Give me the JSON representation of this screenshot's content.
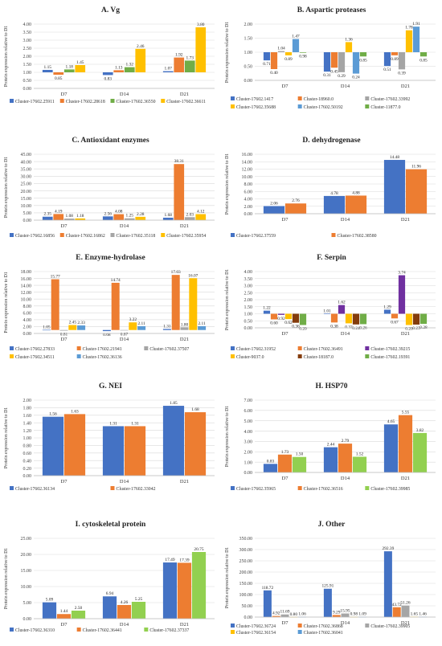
{
  "chart_data": [
    {
      "id": "A",
      "type": "bar",
      "title": "A.   Vg",
      "ylabel": "Protein expression relative to D1",
      "categories": [
        "D7",
        "D14",
        "D21"
      ],
      "ylim": [
        0,
        4
      ],
      "yticks": [
        0,
        0.5,
        1,
        1.5,
        2,
        2.5,
        3,
        3.5,
        4
      ],
      "baseline": 1,
      "decimals": 2,
      "series": [
        {
          "name": "Cluster-17602.25911",
          "color": "#4472C4",
          "values": [
            1.15,
            0.83,
            1.07
          ]
        },
        {
          "name": "Cluster-17602.28618",
          "color": "#ED7D31",
          "values": [
            0.85,
            1.13,
            1.92
          ]
        },
        {
          "name": "Cluster-17602.36550",
          "color": "#70AD47",
          "values": [
            1.18,
            1.32,
            1.73
          ]
        },
        {
          "name": "Cluster-17602.36611",
          "color": "#FFC000",
          "values": [
            1.45,
            2.46,
            3.8
          ]
        }
      ]
    },
    {
      "id": "B",
      "type": "bar",
      "title": "B.   Aspartic proteases",
      "ylabel": "Protein expression relative to D1",
      "categories": [
        "D7",
        "D14",
        "D21"
      ],
      "ylim": [
        0,
        2
      ],
      "yticks": [
        0,
        0.5,
        1,
        1.5,
        2
      ],
      "baseline": 1,
      "decimals": 2,
      "series": [
        {
          "name": "Cluster-17602.1417",
          "color": "#4472C4",
          "values": [
            0.71,
            0.31,
            0.51
          ]
        },
        {
          "name": "Cluster-18960.0",
          "color": "#ED7D31",
          "values": [
            0.4,
            0.45,
            0.89
          ]
        },
        {
          "name": "Cluster-17602.33992",
          "color": "#A5A5A5",
          "values": [
            1.04,
            0.29,
            0.39
          ]
        },
        {
          "name": "Cluster-17602.35688",
          "color": "#FFC000",
          "values": [
            0.89,
            1.36,
            1.78
          ]
        },
        {
          "name": "Cluster-17602.50192",
          "color": "#5B9BD5",
          "values": [
            1.47,
            0.24,
            1.91
          ]
        },
        {
          "name": "Cluster-11877.0",
          "color": "#70AD47",
          "values": [
            0.98,
            0.85,
            0.85
          ]
        }
      ]
    },
    {
      "id": "C",
      "type": "bar",
      "title": "C.   Antioxidant enzymes",
      "ylabel": "Protein expression relative to D1",
      "categories": [
        "D7",
        "D14",
        "D21"
      ],
      "ylim": [
        0,
        45
      ],
      "yticks": [
        0,
        5,
        10,
        15,
        20,
        25,
        30,
        35,
        40,
        45
      ],
      "baseline": 0,
      "decimals": 2,
      "series": [
        {
          "name": "Cluster-17602.16856",
          "color": "#4472C4",
          "values": [
            2.35,
            2.56,
            1.68
          ]
        },
        {
          "name": "Cluster-17602.16862",
          "color": "#ED7D31",
          "values": [
            4.19,
            4.08,
            38.31
          ]
        },
        {
          "name": "Cluster-17602.35118",
          "color": "#A5A5A5",
          "values": [
            1.08,
            1.25,
            2.03
          ]
        },
        {
          "name": "Cluster-17602.35954",
          "color": "#FFC000",
          "values": [
            1.18,
            2.28,
            4.12
          ]
        }
      ]
    },
    {
      "id": "D",
      "type": "bar",
      "title": "D.   dehydrogenase",
      "ylabel": "Protein expression relative to D1",
      "categories": [
        "D7",
        "D14",
        "D21"
      ],
      "ylim": [
        0,
        16
      ],
      "yticks": [
        0,
        2,
        4,
        6,
        8,
        10,
        12,
        14,
        16
      ],
      "baseline": 0,
      "decimals": 2,
      "series": [
        {
          "name": "Cluster-17602.37559",
          "color": "#4472C4",
          "values": [
            2.06,
            4.78,
            14.48
          ]
        },
        {
          "name": "Cluster-17602.38580",
          "color": "#ED7D31",
          "values": [
            2.76,
            4.88,
            11.96
          ]
        }
      ]
    },
    {
      "id": "E",
      "type": "bar",
      "title": "E.   Enzyme-hydrolase",
      "ylabel": "Protein expression relative to D1",
      "categories": [
        "D7",
        "D14",
        "D21"
      ],
      "ylim": [
        0,
        18
      ],
      "yticks": [
        0,
        2,
        4,
        6,
        8,
        10,
        12,
        14,
        16,
        18
      ],
      "baseline": 1,
      "decimals": 2,
      "series": [
        {
          "name": "Cluster-17602.27833",
          "color": "#4472C4",
          "values": [
            1.05,
            0.68,
            1.31
          ]
        },
        {
          "name": "Cluster-17602.21941",
          "color": "#ED7D31",
          "values": [
            15.77,
            14.74,
            17.03
          ]
        },
        {
          "name": "Cluster-17602.37507",
          "color": "#A5A5A5",
          "values": [
            0.81,
            0.87,
            1.8
          ]
        },
        {
          "name": "Cluster-17602.34511",
          "color": "#FFC000",
          "values": [
            2.45,
            3.22,
            16.07
          ]
        },
        {
          "name": "Cluster-17602.36136",
          "color": "#5B9BD5",
          "values": [
            2.33,
            2.11,
            2.11
          ]
        }
      ]
    },
    {
      "id": "F",
      "type": "bar",
      "title": "F.   Serpin",
      "ylabel": "Protein expression relative to D1",
      "categories": [
        "D7",
        "D14",
        "D21"
      ],
      "ylim": [
        0,
        4
      ],
      "yticks": [
        0,
        0.5,
        1,
        1.5,
        2,
        2.5,
        3,
        3.5,
        4
      ],
      "baseline": 1,
      "decimals": 2,
      "series": [
        {
          "name": "Cluster-17602.31952",
          "color": "#4472C4",
          "values": [
            1.22,
            1.01,
            1.29
          ]
        },
        {
          "name": "Cluster-17602.36491",
          "color": "#ED7D31",
          "values": [
            0.6,
            0.38,
            0.67
          ]
        },
        {
          "name": "Cluster-17602.39215",
          "color": "#7030A0",
          "values": [
            0.92,
            1.62,
            3.74
          ]
        },
        {
          "name": "Cluster-9037.0",
          "color": "#FFC000",
          "values": [
            0.62,
            0.32,
            0.2
          ]
        },
        {
          "name": "Cluster-18187.0",
          "color": "#843C0C",
          "values": [
            0.36,
            0.24,
            0.23
          ]
        },
        {
          "name": "Cluster-17602.19391",
          "color": "#70AD47",
          "values": [
            0.2,
            0.26,
            0.28
          ]
        }
      ]
    },
    {
      "id": "G",
      "type": "bar",
      "title": "G.   NEI",
      "ylabel": "Protein expression relative to D1",
      "categories": [
        "D7",
        "D14",
        "D21"
      ],
      "ylim": [
        0,
        2
      ],
      "yticks": [
        0,
        0.2,
        0.4,
        0.6,
        0.8,
        1,
        1.2,
        1.4,
        1.6,
        1.8,
        2
      ],
      "baseline": 0,
      "decimals": 2,
      "series": [
        {
          "name": "Cluster-17602.36134",
          "color": "#4472C4",
          "values": [
            1.56,
            1.31,
            1.85
          ]
        },
        {
          "name": "Cluster-17602.33042",
          "color": "#ED7D31",
          "values": [
            1.63,
            1.31,
            1.68
          ]
        }
      ]
    },
    {
      "id": "H",
      "type": "bar",
      "title": "H.   HSP70",
      "ylabel": "Protein expression relative to D1",
      "categories": [
        "D7",
        "D14",
        "D21"
      ],
      "ylim": [
        0,
        7
      ],
      "yticks": [
        0,
        1,
        2,
        3,
        4,
        5,
        6,
        7
      ],
      "baseline": 0,
      "decimals": 2,
      "series": [
        {
          "name": "Cluster-17602.35965",
          "color": "#4472C4",
          "values": [
            0.83,
            2.44,
            4.65
          ]
        },
        {
          "name": "Cluster-17602.36516",
          "color": "#ED7D31",
          "values": [
            1.73,
            2.79,
            5.55
          ]
        },
        {
          "name": "Cluster-17602.39985",
          "color": "#92D050",
          "values": [
            1.5,
            1.52,
            3.82
          ]
        }
      ]
    },
    {
      "id": "I",
      "type": "bar",
      "title": "I.   cytoskeletal protein",
      "ylabel": "Protein expression relative to D1",
      "categories": [
        "D7",
        "D14",
        "D21"
      ],
      "ylim": [
        0,
        25
      ],
      "yticks": [
        0,
        5,
        10,
        15,
        20,
        25
      ],
      "baseline": 0,
      "decimals": 2,
      "series": [
        {
          "name": "Cluster-17602.36310",
          "color": "#4472C4",
          "values": [
            5.09,
            6.94,
            17.49
          ]
        },
        {
          "name": "Cluster-17602.36441",
          "color": "#ED7D31",
          "values": [
            1.44,
            4.26,
            17.39
          ]
        },
        {
          "name": "Cluster-17602.37337",
          "color": "#92D050",
          "values": [
            2.5,
            5.25,
            20.75
          ]
        }
      ]
    },
    {
      "id": "J",
      "type": "bar",
      "title": "J.   Other",
      "ylabel": "Protein expression relative to D1",
      "categories": [
        "D7",
        "D14",
        "D21"
      ],
      "ylim": [
        0,
        350
      ],
      "yticks": [
        0,
        50,
        100,
        150,
        200,
        250,
        300,
        350
      ],
      "baseline": 0,
      "decimals": 2,
      "series": [
        {
          "name": "Cluster-17602.36724",
          "color": "#4472C4",
          "values": [
            118.72,
            125.91,
            292.39
          ]
        },
        {
          "name": "Cluster-17602.36868",
          "color": "#ED7D31",
          "values": [
            4.92,
            9.29,
            43.72
          ]
        },
        {
          "name": "Cluster-17602.39905",
          "color": "#A5A5A5",
          "values": [
            11.69,
            15.95,
            51.26
          ]
        },
        {
          "name": "Cluster-17602.36154",
          "color": "#FFC000",
          "values": [
            0.8,
            0.98,
            1.65
          ]
        },
        {
          "name": "Cluster-17602.36041",
          "color": "#5B9BD5",
          "values": [
            1.06,
            1.09,
            1.46
          ]
        }
      ]
    }
  ]
}
